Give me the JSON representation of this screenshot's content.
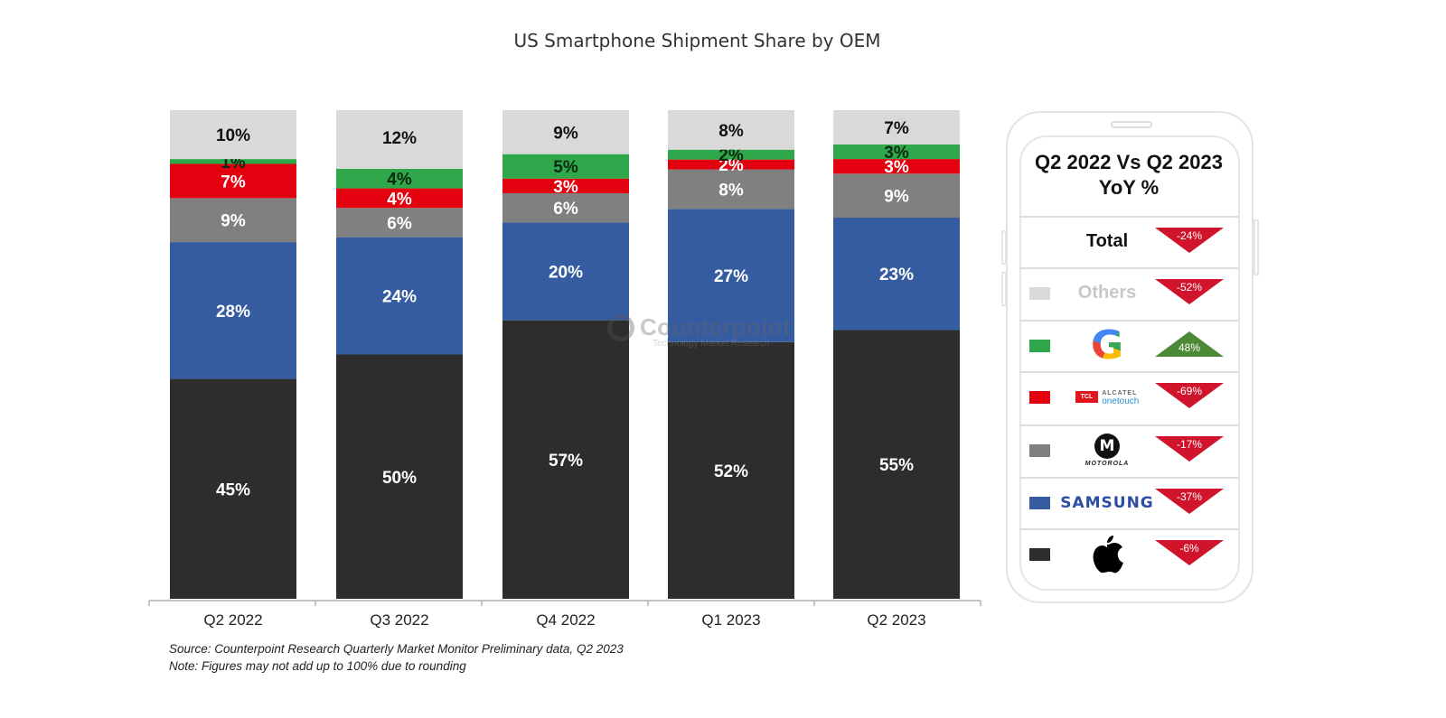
{
  "chart_data": {
    "type": "bar",
    "stacked": true,
    "title": "US Smartphone Shipment Share by OEM",
    "xlabel": "",
    "ylabel": "",
    "ylim": [
      0,
      100
    ],
    "grid": false,
    "categories": [
      "Q2 2022",
      "Q3 2022",
      "Q4 2022",
      "Q1 2023",
      "Q2 2023"
    ],
    "series": [
      {
        "name": "Apple",
        "color": "#2d2d2d",
        "label_color": "#ffffff",
        "values": [
          45,
          50,
          57,
          52,
          55
        ]
      },
      {
        "name": "Samsung",
        "color": "#355ca0",
        "label_color": "#ffffff",
        "values": [
          28,
          24,
          20,
          27,
          23
        ]
      },
      {
        "name": "Motorola",
        "color": "#808080",
        "label_color": "#ffffff",
        "values": [
          9,
          6,
          6,
          8,
          9
        ]
      },
      {
        "name": "TCL Alcatel",
        "color": "#e3000f",
        "label_color": "#ffffff",
        "values": [
          7,
          4,
          3,
          2,
          3
        ]
      },
      {
        "name": "Google",
        "color": "#2ea84a",
        "label_color": "#0a2a10",
        "values": [
          1,
          4,
          5,
          2,
          3
        ]
      },
      {
        "name": "Others",
        "color": "#d9d9d9",
        "label_color": "#111111",
        "values": [
          10,
          12,
          9,
          8,
          7
        ]
      }
    ],
    "value_suffix": "%",
    "annotations": [
      "Source: Counterpoint Research Quarterly Market Monitor Preliminary data, Q2 2023",
      "Note: Figures may not add up to 100% due to rounding"
    ],
    "watermark": {
      "name": "Counterpoint",
      "subtitle": "Technology Market Research"
    }
  },
  "yoy_panel": {
    "title_line1": "Q2 2022 Vs Q2 2023",
    "title_line2": "YoY %",
    "rows": [
      {
        "label": "Total",
        "brand": "total",
        "change": "-24%",
        "direction": "down"
      },
      {
        "label": "Others",
        "brand": "others",
        "swatch": "#d9d9d9",
        "change": "-52%",
        "direction": "down"
      },
      {
        "label": "Google",
        "brand": "google",
        "logo_text": "G",
        "swatch": "#2ea84a",
        "change": "48%",
        "direction": "up"
      },
      {
        "label": "TCL Alcatel",
        "brand": "tcl",
        "logo_text_1": "TCL",
        "logo_text_2": "ALCATEL",
        "logo_text_3": "onetouch",
        "swatch": "#e3000f",
        "change": "-69%",
        "direction": "down"
      },
      {
        "label": "Motorola",
        "brand": "motorola",
        "logo_text_1": "M",
        "logo_text_2": "MOTOROLA",
        "swatch": "#808080",
        "change": "-17%",
        "direction": "down"
      },
      {
        "label": "Samsung",
        "brand": "samsung",
        "logo_text": "SAMSUNG",
        "swatch": "#355ca0",
        "change": "-37%",
        "direction": "down"
      },
      {
        "label": "Apple",
        "brand": "apple",
        "logo_text": "",
        "swatch": "#2d2d2d",
        "change": "-6%",
        "direction": "down"
      }
    ],
    "colors": {
      "down": "#d0142c",
      "up": "#4c8a37"
    }
  }
}
